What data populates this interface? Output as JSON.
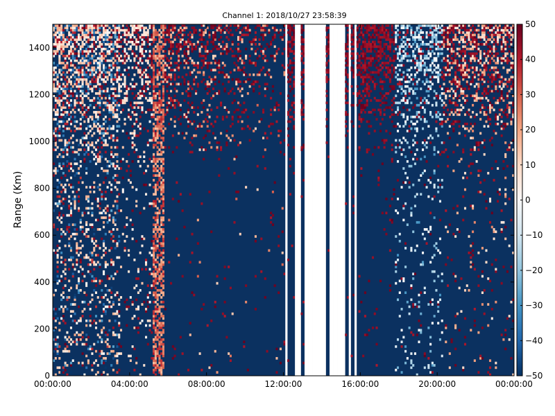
{
  "chart_data": {
    "type": "heatmap",
    "title": "Channel 1: 2018/10/27 23:58:39",
    "xlabel": "",
    "ylabel": "Range (Km)",
    "x_ticks": [
      "00:00:00",
      "04:00:00",
      "08:00:00",
      "12:00:00",
      "16:00:00",
      "20:00:00",
      "00:00:00"
    ],
    "xlim_hours": [
      0,
      24
    ],
    "y_ticks": [
      0,
      200,
      400,
      600,
      800,
      1000,
      1200,
      1400
    ],
    "ylim": [
      0,
      1500
    ],
    "colorbar": {
      "ticks": [
        -50,
        -40,
        -30,
        -20,
        -10,
        0,
        10,
        20,
        30,
        40,
        50
      ],
      "range": [
        -50,
        50
      ],
      "colormap": "RdBu_r"
    },
    "grid": false,
    "no_data_hours": [
      [
        12.1,
        12.2
      ],
      [
        12.6,
        12.9
      ],
      [
        13.1,
        14.2
      ],
      [
        14.4,
        15.2
      ],
      [
        15.4,
        15.5
      ],
      [
        15.7,
        15.8
      ]
    ],
    "colors": {
      "background": "#ffffff",
      "low": "#053061",
      "high": "#67001f"
    }
  }
}
